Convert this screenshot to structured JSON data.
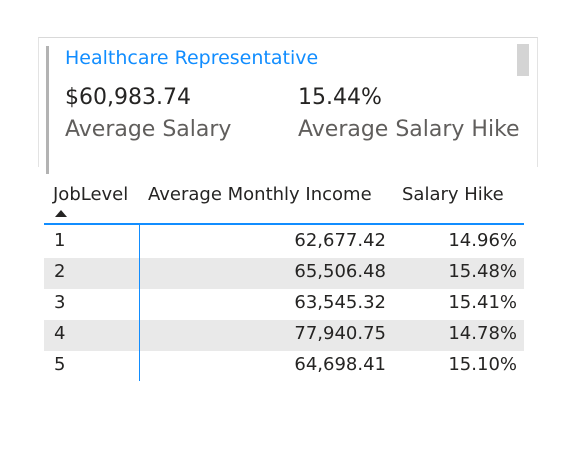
{
  "card": {
    "title": "Healthcare Representative",
    "kpis": [
      {
        "value": "$60,983.74",
        "label": "Average Salary"
      },
      {
        "value": "15.44%",
        "label": "Average Salary Hike"
      }
    ]
  },
  "table": {
    "columns": [
      "JobLevel",
      "Average Monthly Income",
      "Salary Hike"
    ],
    "sort": {
      "column": "JobLevel",
      "direction": "ascending"
    },
    "rows": [
      {
        "level": "1",
        "income": "62,677.42",
        "hike": "14.96%"
      },
      {
        "level": "2",
        "income": "65,506.48",
        "hike": "15.48%"
      },
      {
        "level": "3",
        "income": "63,545.32",
        "hike": "15.41%"
      },
      {
        "level": "4",
        "income": "77,940.75",
        "hike": "14.78%"
      },
      {
        "level": "5",
        "income": "64,698.41",
        "hike": "15.10%"
      }
    ]
  },
  "colors": {
    "accent": "#118dff",
    "text": "#252423",
    "label": "#605e5c",
    "row_shade": "#e9e9e9"
  }
}
